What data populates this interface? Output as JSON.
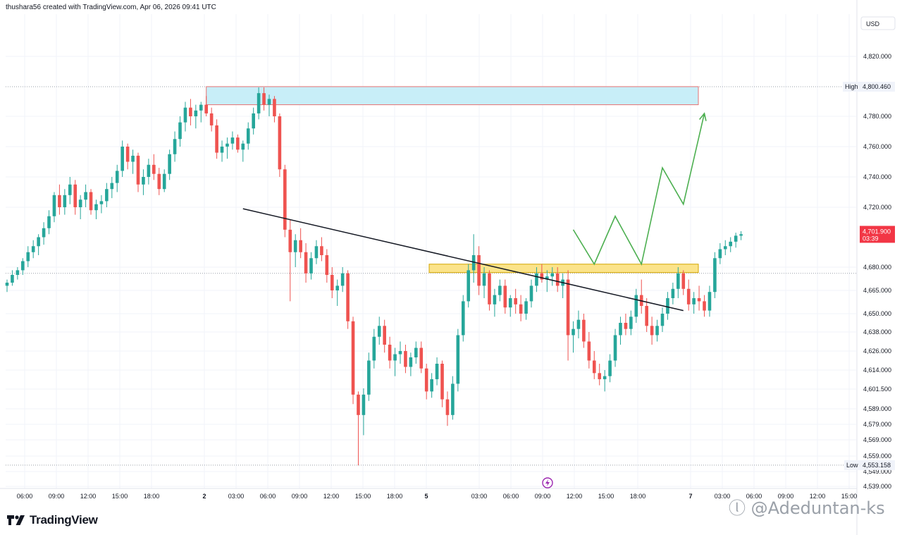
{
  "header": {
    "credit": "thushara56 created with TradingView.com, Apr 06, 2026 09:41 UTC"
  },
  "logo": {
    "text": "TradingView"
  },
  "watermark": {
    "text": "ⓛ @Adeduntan-ks"
  },
  "colors": {
    "up": "#26a69a",
    "down": "#ef5350",
    "supply_zone": "#c8eef8",
    "demand_zone": "#fbe38a",
    "projection": "#4caf50",
    "trendline": "#131722"
  },
  "chart_data": {
    "type": "candlestick",
    "currency": "USD",
    "y_ticks": [
      "4,820.000",
      "4,780.000",
      "4,760.000",
      "4,740.000",
      "4,720.000",
      "4,680.000",
      "4,665.000",
      "4,650.000",
      "4,638.000",
      "4,626.000",
      "4,614.000",
      "4,601.500",
      "4,589.000",
      "4,579.000",
      "4,569.000",
      "4,559.000",
      "4,549.000",
      "4,539.000"
    ],
    "x_ticks": [
      "06:00",
      "09:00",
      "12:00",
      "15:00",
      "18:00",
      "2",
      "03:00",
      "06:00",
      "09:00",
      "12:00",
      "15:00",
      "18:00",
      "5",
      "03:00",
      "06:00",
      "09:00",
      "12:00",
      "15:00",
      "18:00",
      "7",
      "03:00",
      "06:00",
      "09:00",
      "12:00",
      "15:00"
    ],
    "high": {
      "label": "High",
      "value": "4,800.460"
    },
    "low": {
      "label": "Low",
      "value": "4,553.158"
    },
    "last": {
      "value": "4,701.900",
      "countdown": "03:39"
    },
    "candles": [
      [
        4668,
        4672,
        4664,
        4670
      ],
      [
        4670,
        4678,
        4668,
        4675
      ],
      [
        4675,
        4680,
        4672,
        4678
      ],
      [
        4678,
        4686,
        4675,
        4684
      ],
      [
        4684,
        4694,
        4680,
        4690
      ],
      [
        4690,
        4698,
        4686,
        4694
      ],
      [
        4694,
        4702,
        4688,
        4700
      ],
      [
        4700,
        4710,
        4695,
        4706
      ],
      [
        4706,
        4718,
        4702,
        4714
      ],
      [
        4714,
        4730,
        4710,
        4728
      ],
      [
        4728,
        4735,
        4715,
        4720
      ],
      [
        4720,
        4732,
        4715,
        4728
      ],
      [
        4728,
        4740,
        4722,
        4735
      ],
      [
        4735,
        4738,
        4715,
        4720
      ],
      [
        4720,
        4728,
        4712,
        4725
      ],
      [
        4725,
        4735,
        4720,
        4730
      ],
      [
        4730,
        4732,
        4715,
        4718
      ],
      [
        4718,
        4725,
        4712,
        4722
      ],
      [
        4722,
        4728,
        4716,
        4724
      ],
      [
        4724,
        4736,
        4720,
        4732
      ],
      [
        4732,
        4740,
        4726,
        4736
      ],
      [
        4736,
        4748,
        4730,
        4744
      ],
      [
        4744,
        4764,
        4740,
        4760
      ],
      [
        4760,
        4762,
        4745,
        4750
      ],
      [
        4750,
        4758,
        4742,
        4754
      ],
      [
        4754,
        4756,
        4730,
        4735
      ],
      [
        4735,
        4745,
        4728,
        4740
      ],
      [
        4740,
        4752,
        4735,
        4748
      ],
      [
        4748,
        4755,
        4738,
        4742
      ],
      [
        4742,
        4746,
        4728,
        4732
      ],
      [
        4732,
        4745,
        4730,
        4742
      ],
      [
        4742,
        4758,
        4738,
        4755
      ],
      [
        4755,
        4770,
        4750,
        4765
      ],
      [
        4765,
        4780,
        4760,
        4776
      ],
      [
        4776,
        4790,
        4770,
        4786
      ],
      [
        4786,
        4792,
        4774,
        4780
      ],
      [
        4780,
        4788,
        4772,
        4784
      ],
      [
        4784,
        4790,
        4776,
        4788
      ],
      [
        4788,
        4794,
        4780,
        4782
      ],
      [
        4782,
        4786,
        4770,
        4774
      ],
      [
        4774,
        4778,
        4752,
        4756
      ],
      [
        4756,
        4764,
        4750,
        4760
      ],
      [
        4760,
        4766,
        4752,
        4762
      ],
      [
        4762,
        4770,
        4758,
        4766
      ],
      [
        4766,
        4768,
        4756,
        4758
      ],
      [
        4758,
        4764,
        4750,
        4762
      ],
      [
        4762,
        4776,
        4758,
        4772
      ],
      [
        4772,
        4786,
        4768,
        4782
      ],
      [
        4782,
        4800,
        4778,
        4796
      ],
      [
        4796,
        4800,
        4784,
        4788
      ],
      [
        4788,
        4795,
        4780,
        4792
      ],
      [
        4792,
        4794,
        4776,
        4780
      ],
      [
        4780,
        4782,
        4740,
        4745
      ],
      [
        4745,
        4748,
        4700,
        4705
      ],
      [
        4705,
        4712,
        4658,
        4690
      ],
      [
        4690,
        4702,
        4680,
        4698
      ],
      [
        4698,
        4706,
        4686,
        4690
      ],
      [
        4690,
        4696,
        4670,
        4676
      ],
      [
        4676,
        4690,
        4672,
        4686
      ],
      [
        4686,
        4698,
        4682,
        4694
      ],
      [
        4694,
        4700,
        4684,
        4688
      ],
      [
        4688,
        4692,
        4670,
        4675
      ],
      [
        4675,
        4680,
        4660,
        4665
      ],
      [
        4665,
        4672,
        4655,
        4668
      ],
      [
        4668,
        4680,
        4664,
        4676
      ],
      [
        4676,
        4678,
        4640,
        4645
      ],
      [
        4645,
        4648,
        4592,
        4598
      ],
      [
        4598,
        4600,
        4553,
        4585
      ],
      [
        4585,
        4602,
        4572,
        4598
      ],
      [
        4598,
        4625,
        4594,
        4620
      ],
      [
        4620,
        4640,
        4615,
        4635
      ],
      [
        4635,
        4648,
        4630,
        4642
      ],
      [
        4642,
        4646,
        4625,
        4630
      ],
      [
        4630,
        4635,
        4615,
        4620
      ],
      [
        4620,
        4628,
        4610,
        4624
      ],
      [
        4624,
        4632,
        4618,
        4626
      ],
      [
        4626,
        4630,
        4612,
        4616
      ],
      [
        4616,
        4625,
        4610,
        4622
      ],
      [
        4622,
        4632,
        4618,
        4628
      ],
      [
        4628,
        4632,
        4612,
        4615
      ],
      [
        4615,
        4618,
        4595,
        4600
      ],
      [
        4600,
        4612,
        4596,
        4608
      ],
      [
        4608,
        4622,
        4604,
        4618
      ],
      [
        4618,
        4620,
        4590,
        4595
      ],
      [
        4595,
        4600,
        4578,
        4585
      ],
      [
        4585,
        4610,
        4582,
        4605
      ],
      [
        4605,
        4640,
        4600,
        4636
      ],
      [
        4636,
        4662,
        4632,
        4658
      ],
      [
        4658,
        4682,
        4654,
        4678
      ],
      [
        4678,
        4702,
        4670,
        4688
      ],
      [
        4688,
        4694,
        4662,
        4668
      ],
      [
        4668,
        4680,
        4660,
        4676
      ],
      [
        4676,
        4678,
        4652,
        4656
      ],
      [
        4656,
        4666,
        4648,
        4662
      ],
      [
        4662,
        4672,
        4658,
        4668
      ],
      [
        4668,
        4672,
        4650,
        4654
      ],
      [
        4654,
        4662,
        4648,
        4660
      ],
      [
        4660,
        4666,
        4650,
        4656
      ],
      [
        4656,
        4662,
        4645,
        4650
      ],
      [
        4650,
        4660,
        4646,
        4658
      ],
      [
        4658,
        4672,
        4654,
        4668
      ],
      [
        4668,
        4680,
        4664,
        4676
      ],
      [
        4676,
        4682,
        4670,
        4672
      ],
      [
        4672,
        4678,
        4664,
        4674
      ],
      [
        4674,
        4680,
        4668,
        4676
      ],
      [
        4676,
        4680,
        4664,
        4668
      ],
      [
        4668,
        4676,
        4660,
        4672
      ],
      [
        4672,
        4678,
        4620,
        4636
      ],
      [
        4636,
        4645,
        4625,
        4640
      ],
      [
        4640,
        4652,
        4634,
        4646
      ],
      [
        4646,
        4650,
        4628,
        4632
      ],
      [
        4632,
        4638,
        4615,
        4620
      ],
      [
        4620,
        4626,
        4608,
        4612
      ],
      [
        4612,
        4618,
        4604,
        4608
      ],
      [
        4608,
        4614,
        4600,
        4610
      ],
      [
        4610,
        4624,
        4606,
        4620
      ],
      [
        4620,
        4640,
        4616,
        4636
      ],
      [
        4636,
        4648,
        4630,
        4644
      ],
      [
        4644,
        4650,
        4636,
        4640
      ],
      [
        4640,
        4652,
        4636,
        4648
      ],
      [
        4648,
        4666,
        4644,
        4662
      ],
      [
        4662,
        4672,
        4650,
        4655
      ],
      [
        4655,
        4660,
        4638,
        4642
      ],
      [
        4642,
        4648,
        4630,
        4636
      ],
      [
        4636,
        4646,
        4632,
        4642
      ],
      [
        4642,
        4654,
        4638,
        4650
      ],
      [
        4650,
        4664,
        4646,
        4660
      ],
      [
        4660,
        4670,
        4656,
        4666
      ],
      [
        4666,
        4680,
        4660,
        4676
      ],
      [
        4676,
        4678,
        4662,
        4666
      ],
      [
        4666,
        4672,
        4652,
        4656
      ],
      [
        4656,
        4664,
        4650,
        4660
      ],
      [
        4660,
        4668,
        4652,
        4658
      ],
      [
        4658,
        4662,
        4648,
        4652
      ],
      [
        4652,
        4668,
        4648,
        4664
      ],
      [
        4664,
        4690,
        4660,
        4686
      ],
      [
        4686,
        4696,
        4682,
        4692
      ],
      [
        4692,
        4698,
        4688,
        4694
      ],
      [
        4694,
        4700,
        4690,
        4697
      ],
      [
        4697,
        4703,
        4693,
        4701
      ],
      [
        4701,
        4704,
        4698,
        4702
      ]
    ]
  },
  "annotations": {
    "supply_zone": {
      "y_top": 4800.5,
      "y_bottom": 4788
    },
    "demand_zone": {
      "y_top": 4682,
      "y_bottom": 4676.5
    },
    "reference_lines": [
      4800.46,
      4676,
      4553.158
    ],
    "trendline": {
      "x": [
        45,
        129
      ],
      "y": [
        4719,
        4652
      ]
    },
    "projection": {
      "x": [
        108,
        112,
        116,
        121,
        125,
        129,
        133
      ],
      "y": [
        4705,
        4682,
        4714,
        4682,
        4746,
        4722,
        4782
      ]
    }
  }
}
